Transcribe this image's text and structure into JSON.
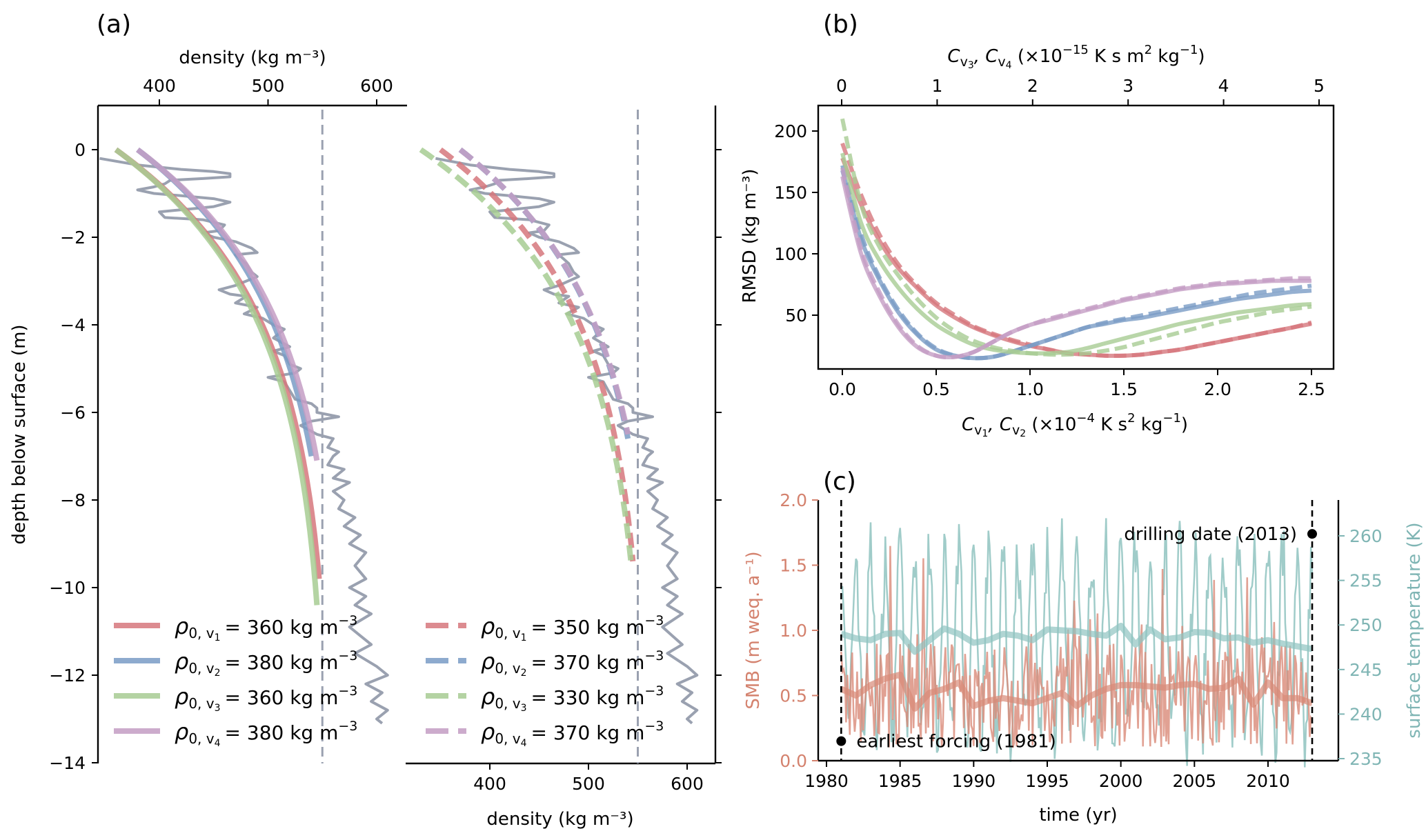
{
  "chart_data": [
    {
      "id": "a",
      "panel_label": "(a)",
      "type": "line",
      "title": "",
      "ylabel": "depth below surface (m)",
      "ylim": [
        -14,
        1
      ],
      "yticks": [
        0,
        -2,
        -4,
        -6,
        -8,
        -10,
        -12,
        -14
      ],
      "reference_density": 550,
      "measured_color": "#9aa1b0",
      "measured_profile": [
        [
          345,
          -0.2
        ],
        [
          380,
          -0.35
        ],
        [
          420,
          -0.45
        ],
        [
          450,
          -0.5
        ],
        [
          465,
          -0.55
        ],
        [
          465,
          -0.62
        ],
        [
          440,
          -0.66
        ],
        [
          410,
          -0.7
        ],
        [
          405,
          -0.78
        ],
        [
          395,
          -0.85
        ],
        [
          380,
          -0.92
        ],
        [
          395,
          -1.0
        ],
        [
          420,
          -1.05
        ],
        [
          450,
          -1.12
        ],
        [
          465,
          -1.2
        ],
        [
          450,
          -1.3
        ],
        [
          430,
          -1.35
        ],
        [
          400,
          -1.42
        ],
        [
          405,
          -1.55
        ],
        [
          440,
          -1.6
        ],
        [
          460,
          -1.72
        ],
        [
          455,
          -1.85
        ],
        [
          440,
          -1.9
        ],
        [
          450,
          -2.0
        ],
        [
          470,
          -2.1
        ],
        [
          485,
          -2.25
        ],
        [
          490,
          -2.35
        ],
        [
          470,
          -2.4
        ],
        [
          475,
          -2.5
        ],
        [
          480,
          -2.6
        ],
        [
          485,
          -2.8
        ],
        [
          490,
          -2.9
        ],
        [
          470,
          -3.1
        ],
        [
          455,
          -3.2
        ],
        [
          465,
          -3.3
        ],
        [
          480,
          -3.35
        ],
        [
          470,
          -3.5
        ],
        [
          490,
          -3.6
        ],
        [
          478,
          -3.75
        ],
        [
          495,
          -3.85
        ],
        [
          505,
          -4.0
        ],
        [
          515,
          -4.1
        ],
        [
          505,
          -4.3
        ],
        [
          520,
          -4.5
        ],
        [
          505,
          -4.6
        ],
        [
          515,
          -4.7
        ],
        [
          520,
          -4.9
        ],
        [
          530,
          -5.0
        ],
        [
          525,
          -5.1
        ],
        [
          500,
          -5.2
        ],
        [
          515,
          -5.3
        ],
        [
          520,
          -5.5
        ],
        [
          525,
          -5.7
        ],
        [
          540,
          -5.8
        ],
        [
          545,
          -5.9
        ],
        [
          545,
          -6.0
        ],
        [
          565,
          -6.1
        ],
        [
          540,
          -6.2
        ],
        [
          530,
          -6.3
        ],
        [
          545,
          -6.5
        ],
        [
          560,
          -6.6
        ],
        [
          555,
          -6.8
        ],
        [
          565,
          -6.9
        ],
        [
          560,
          -7.0
        ],
        [
          555,
          -7.2
        ],
        [
          570,
          -7.3
        ],
        [
          560,
          -7.5
        ],
        [
          575,
          -7.6
        ],
        [
          560,
          -7.8
        ],
        [
          570,
          -8.0
        ],
        [
          565,
          -8.2
        ],
        [
          580,
          -8.4
        ],
        [
          570,
          -8.6
        ],
        [
          585,
          -8.8
        ],
        [
          575,
          -9.0
        ],
        [
          590,
          -9.2
        ],
        [
          580,
          -9.5
        ],
        [
          590,
          -9.8
        ],
        [
          575,
          -10.0
        ],
        [
          590,
          -10.2
        ],
        [
          580,
          -10.4
        ],
        [
          595,
          -10.6
        ],
        [
          575,
          -10.9
        ],
        [
          585,
          -11.1
        ],
        [
          595,
          -11.3
        ],
        [
          580,
          -11.5
        ],
        [
          600,
          -11.8
        ],
        [
          610,
          -12.0
        ],
        [
          590,
          -12.2
        ],
        [
          605,
          -12.4
        ],
        [
          595,
          -12.6
        ],
        [
          610,
          -12.8
        ],
        [
          600,
          -13.0
        ],
        [
          605,
          -13.1
        ]
      ],
      "subplots": [
        {
          "name": "left",
          "style": "solid",
          "top_xlabel": "density (kg m⁻³)",
          "xticks": [
            400,
            500,
            600
          ],
          "xlim": [
            343,
            628
          ],
          "series": [
            {
              "name": "ρ0,v1 = 360 kg m⁻³",
              "color": "#d6777d",
              "rho0": 360,
              "end_depth": -9.8,
              "end_density": 547
            },
            {
              "name": "ρ0,v2 = 380 kg m⁻³",
              "color": "#7a9cc6",
              "rho0": 380,
              "end_depth": -7.0,
              "end_density": 540
            },
            {
              "name": "ρ0,v3 = 360 kg m⁻³",
              "color": "#a7cc93",
              "rho0": 360,
              "end_depth": -10.4,
              "end_density": 545
            },
            {
              "name": "ρ0,v4 = 380 kg m⁻³",
              "color": "#c49dc4",
              "rho0": 380,
              "end_depth": -7.1,
              "end_density": 545
            }
          ],
          "legend": [
            {
              "rho": "ρ",
              "sub": "0, v",
              "idx": "1",
              "value": "= 360 kg m",
              "exp": "−3"
            },
            {
              "rho": "ρ",
              "sub": "0, v",
              "idx": "2",
              "value": "= 380 kg m",
              "exp": "−3"
            },
            {
              "rho": "ρ",
              "sub": "0, v",
              "idx": "3",
              "value": "= 360 kg m",
              "exp": "−3"
            },
            {
              "rho": "ρ",
              "sub": "0, v",
              "idx": "4",
              "value": "= 380 kg m",
              "exp": "−3"
            }
          ]
        },
        {
          "name": "right",
          "style": "dashed",
          "bottom_xlabel": "density (kg m⁻³)",
          "xticks": [
            400,
            500,
            600
          ],
          "xlim": [
            315,
            628
          ],
          "series": [
            {
              "name": "ρ0,v1 = 350 kg m⁻³",
              "color": "#d6777d",
              "rho0": 350,
              "end_depth": -9.4,
              "end_density": 545
            },
            {
              "name": "ρ0,v2 = 370 kg m⁻³",
              "color": "#7a9cc6",
              "rho0": 370,
              "end_depth": -6.6,
              "end_density": 540
            },
            {
              "name": "ρ0,v3 = 330 kg m⁻³",
              "color": "#a7cc93",
              "rho0": 330,
              "end_depth": -9.4,
              "end_density": 543
            },
            {
              "name": "ρ0,v4 = 370 kg m⁻³",
              "color": "#c49dc4",
              "rho0": 370,
              "end_depth": -6.5,
              "end_density": 540
            }
          ],
          "legend": [
            {
              "rho": "ρ",
              "sub": "0, v",
              "idx": "1",
              "value": "= 350 kg m",
              "exp": "−3"
            },
            {
              "rho": "ρ",
              "sub": "0, v",
              "idx": "2",
              "value": "= 370 kg m",
              "exp": "−3"
            },
            {
              "rho": "ρ",
              "sub": "0, v",
              "idx": "3",
              "value": "= 330 kg m",
              "exp": "−3"
            },
            {
              "rho": "ρ",
              "sub": "0, v",
              "idx": "4",
              "value": "= 370 kg m",
              "exp": "−3"
            }
          ]
        }
      ]
    },
    {
      "id": "b",
      "panel_label": "(b)",
      "type": "line",
      "ylabel": "RMSD (kg m⁻³)",
      "ylim": [
        6,
        221
      ],
      "yticks": [
        50,
        100,
        150,
        200
      ],
      "xlabel_bottom": {
        "main": "C",
        "s1": "v",
        "i1": "1",
        "sep": ", C",
        "s2": "v",
        "i2": "2",
        "unit": " (×10",
        "exp1": "−4",
        "unit2": " K s",
        "exp2": "2",
        "unit3": " kg",
        "exp3": "−1",
        "close": ")"
      },
      "xlabel_top": {
        "main": "C",
        "s1": "v",
        "i1": "3",
        "sep": ", C",
        "s2": "v",
        "i2": "4",
        "unit": " (×10",
        "exp1": "−15",
        "unit2": " K s m",
        "exp2": "2",
        "unit3": " kg",
        "exp3": "−1",
        "close": ")"
      },
      "xlim": [
        -0.13,
        2.62
      ],
      "xticks": [
        0.0,
        0.5,
        1.0,
        1.5,
        2.0,
        2.5
      ],
      "top_xticks": [
        0,
        1,
        2,
        3,
        4,
        5
      ],
      "top_xlim_mapping": "5 top units = 2.54 bottom units",
      "x": [
        0.0,
        0.1,
        0.2,
        0.3,
        0.4,
        0.5,
        0.6,
        0.7,
        0.8,
        0.9,
        1.0,
        1.1,
        1.2,
        1.3,
        1.4,
        1.5,
        1.6,
        1.7,
        1.8,
        1.9,
        2.0,
        2.1,
        2.2,
        2.3,
        2.4,
        2.5
      ],
      "series": [
        {
          "name": "v1 solid",
          "color": "#d6777d",
          "style": "solid",
          "values": [
            178,
            140,
            110,
            88,
            72,
            58,
            48,
            40,
            34,
            29,
            25,
            22,
            19,
            18,
            17,
            17,
            18,
            20,
            22,
            25,
            28,
            31,
            34,
            37,
            40,
            43
          ]
        },
        {
          "name": "v1 dashed",
          "color": "#d6777d",
          "style": "dashed",
          "values": [
            190,
            148,
            115,
            91,
            74,
            60,
            50,
            41,
            35,
            30,
            26,
            22,
            19,
            18,
            17,
            17,
            18,
            20,
            22,
            25,
            28,
            31,
            34,
            37,
            40,
            44
          ]
        },
        {
          "name": "v2 solid",
          "color": "#7a9cc6",
          "style": "solid",
          "values": [
            168,
            112,
            78,
            52,
            34,
            22,
            17,
            15,
            16,
            20,
            25,
            30,
            35,
            40,
            43,
            46,
            48,
            51,
            54,
            57,
            60,
            63,
            65,
            67,
            69,
            70
          ]
        },
        {
          "name": "v2 dashed",
          "color": "#7a9cc6",
          "style": "dashed",
          "values": [
            172,
            116,
            80,
            54,
            35,
            23,
            17,
            15,
            16,
            20,
            25,
            30,
            35,
            40,
            44,
            47,
            50,
            53,
            56,
            59,
            62,
            65,
            68,
            70,
            72,
            74
          ]
        },
        {
          "name": "v3 solid",
          "color": "#a7cc93",
          "style": "solid",
          "values": [
            182,
            125,
            94,
            72,
            55,
            42,
            33,
            26,
            22,
            20,
            19,
            19,
            20,
            23,
            27,
            31,
            35,
            39,
            43,
            46,
            49,
            52,
            54,
            56,
            58,
            59
          ]
        },
        {
          "name": "v3 dashed",
          "color": "#a7cc93",
          "style": "dashed",
          "values": [
            210,
            140,
            105,
            82,
            63,
            48,
            37,
            29,
            24,
            21,
            19,
            18,
            18,
            19,
            21,
            24,
            28,
            32,
            36,
            40,
            44,
            47,
            50,
            53,
            55,
            57
          ]
        },
        {
          "name": "v4 solid",
          "color": "#c49dc4",
          "style": "solid",
          "values": [
            163,
            100,
            65,
            40,
            24,
            17,
            16,
            20,
            28,
            36,
            42,
            46,
            50,
            54,
            58,
            62,
            65,
            68,
            71,
            73,
            75,
            76,
            77,
            78,
            78,
            78
          ]
        },
        {
          "name": "v4 dashed",
          "color": "#c49dc4",
          "style": "dashed",
          "values": [
            170,
            104,
            68,
            42,
            25,
            17,
            16,
            20,
            28,
            36,
            42,
            47,
            51,
            55,
            59,
            63,
            66,
            69,
            72,
            74,
            76,
            77,
            78,
            79,
            80,
            80
          ]
        }
      ]
    },
    {
      "id": "c",
      "panel_label": "(c)",
      "type": "line",
      "xlabel": "time (yr)",
      "ylabel_left": "SMB (m weq. a⁻¹)",
      "ylabel_right": "surface temperature (K)",
      "xlim": [
        1979.5,
        2014.7
      ],
      "xticks": [
        1980,
        1985,
        1990,
        1995,
        2000,
        2005,
        2010
      ],
      "ylim_left": [
        0.0,
        2.0
      ],
      "yticks_left": [
        "0.0",
        "0.5",
        "1.0",
        "1.5",
        "2.0"
      ],
      "ylim_right": [
        234.8,
        264
      ],
      "yticks_right": [
        235,
        240,
        245,
        250,
        255,
        260
      ],
      "smb_color": "#d98a78",
      "temp_color": "#8fc3c0",
      "smb_axis_color": "#d4826e",
      "temp_axis_color": "#7fb5b4",
      "smb_smoothed": {
        "x": [
          1981,
          1982,
          1983,
          1984,
          1985,
          1986,
          1987,
          1988,
          1989,
          1990,
          1991,
          1992,
          1993,
          1994,
          1995,
          1996,
          1997,
          1998,
          1999,
          2000,
          2001,
          2002,
          2003,
          2004,
          2005,
          2006,
          2007,
          2008,
          2009,
          2010,
          2011,
          2012,
          2013
        ],
        "values": [
          0.55,
          0.5,
          0.58,
          0.63,
          0.66,
          0.4,
          0.52,
          0.55,
          0.6,
          0.42,
          0.46,
          0.48,
          0.46,
          0.44,
          0.48,
          0.52,
          0.42,
          0.5,
          0.55,
          0.58,
          0.58,
          0.57,
          0.56,
          0.58,
          0.59,
          0.55,
          0.56,
          0.63,
          0.43,
          0.6,
          0.48,
          0.48,
          0.44
        ]
      },
      "temp_smoothed": {
        "x": [
          1981,
          1982,
          1983,
          1984,
          1985,
          1986,
          1987,
          1988,
          1989,
          1990,
          1991,
          1992,
          1993,
          1994,
          1995,
          1996,
          1997,
          1998,
          1999,
          2000,
          2001,
          2002,
          2003,
          2004,
          2005,
          2006,
          2007,
          2008,
          2009,
          2010,
          2011,
          2012,
          2013
        ],
        "values": [
          249.0,
          248.5,
          248.3,
          249.0,
          249.1,
          247.0,
          248.3,
          249.6,
          249.0,
          248.0,
          248.3,
          249.0,
          248.8,
          248.3,
          249.5,
          249.4,
          249.3,
          249.0,
          248.8,
          249.9,
          247.8,
          249.5,
          248.4,
          248.6,
          249.2,
          249.1,
          248.5,
          248.6,
          248.0,
          248.3,
          247.9,
          247.6,
          247.3
        ]
      },
      "annotations": [
        {
          "text": "earliest forcing (1981)",
          "x": 1981,
          "y": 0.15
        },
        {
          "text": "drilling date (2013)",
          "x": 2013,
          "y": 1.74
        }
      ],
      "vlines": [
        1981,
        2013
      ]
    }
  ]
}
